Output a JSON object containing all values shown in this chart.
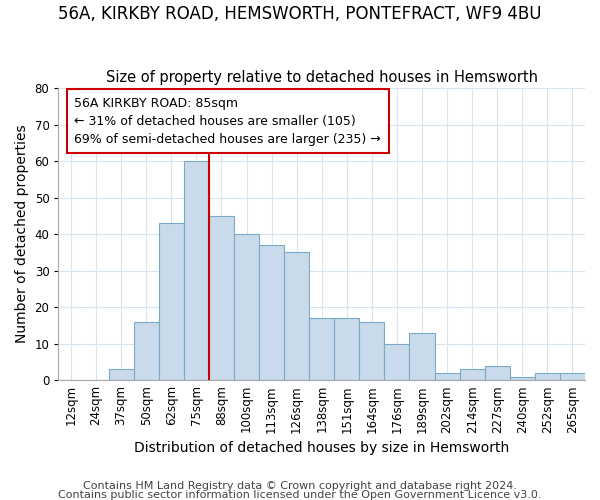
{
  "title1": "56A, KIRKBY ROAD, HEMSWORTH, PONTEFRACT, WF9 4BU",
  "title2": "Size of property relative to detached houses in Hemsworth",
  "xlabel": "Distribution of detached houses by size in Hemsworth",
  "ylabel": "Number of detached properties",
  "categories": [
    "12sqm",
    "24sqm",
    "37sqm",
    "50sqm",
    "62sqm",
    "75sqm",
    "88sqm",
    "100sqm",
    "113sqm",
    "126sqm",
    "138sqm",
    "151sqm",
    "164sqm",
    "176sqm",
    "189sqm",
    "202sqm",
    "214sqm",
    "227sqm",
    "240sqm",
    "252sqm",
    "265sqm"
  ],
  "values": [
    0,
    0,
    3,
    16,
    43,
    60,
    45,
    40,
    37,
    35,
    17,
    17,
    16,
    10,
    13,
    2,
    3,
    4,
    1,
    2,
    2
  ],
  "bar_color": "#c9daea",
  "bar_edge_color": "#7aaac8",
  "vline_x_index": 6,
  "vline_color": "#cc0000",
  "annotation_title": "56A KIRKBY ROAD: 85sqm",
  "annotation_line1": "← 31% of detached houses are smaller (105)",
  "annotation_line2": "69% of semi-detached houses are larger (235) →",
  "annotation_box_edgecolor": "#cc0000",
  "ylim": [
    0,
    80
  ],
  "yticks": [
    0,
    10,
    20,
    30,
    40,
    50,
    60,
    70,
    80
  ],
  "footer1": "Contains HM Land Registry data © Crown copyright and database right 2024.",
  "footer2": "Contains public sector information licensed under the Open Government Licence v3.0.",
  "grid_color": "#d8e4f0",
  "title_fontsize": 12,
  "subtitle_fontsize": 10.5,
  "axis_label_fontsize": 10,
  "tick_fontsize": 8.5,
  "annotation_fontsize": 9,
  "footer_fontsize": 8
}
